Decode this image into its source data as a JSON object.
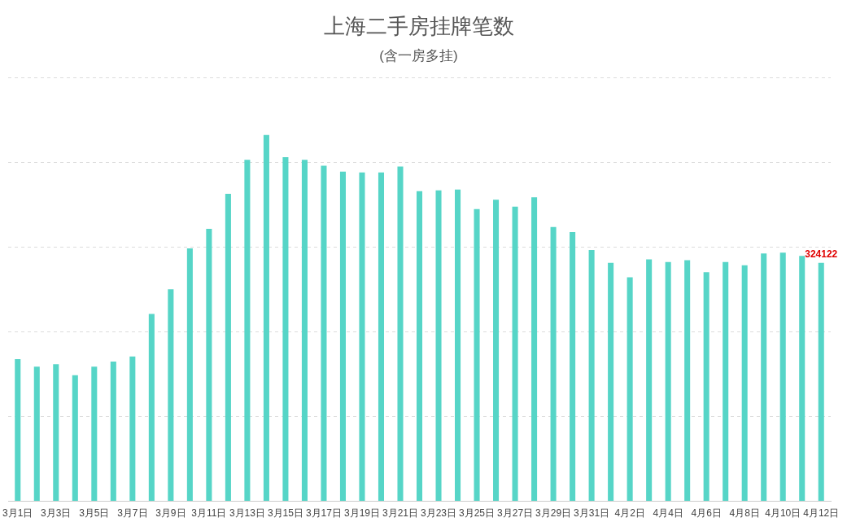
{
  "chart_data": {
    "type": "bar",
    "title": "上海二手房挂牌笔数",
    "subtitle": "(含一房多挂)",
    "categories": [
      "3月1日",
      null,
      "3月3日",
      null,
      "3月5日",
      null,
      "3月7日",
      null,
      "3月9日",
      null,
      "3月11日",
      null,
      "3月13日",
      null,
      "3月15日",
      null,
      "3月17日",
      null,
      "3月19日",
      null,
      "3月21日",
      null,
      "3月23日",
      null,
      "3月25日",
      null,
      "3月27日",
      null,
      "3月29日",
      null,
      "3月31日",
      null,
      "4月2日",
      null,
      "4月4日",
      null,
      "4月6日",
      null,
      "4月8日",
      null,
      "4月10日",
      null,
      "4月12日"
    ],
    "values": [
      193300,
      182900,
      186400,
      171300,
      182900,
      189800,
      196800,
      254700,
      288200,
      343800,
      370400,
      417900,
      464200,
      497800,
      467700,
      464200,
      456100,
      448000,
      446800,
      446800,
      454900,
      421400,
      422500,
      423700,
      397100,
      409800,
      400500,
      413300,
      372700,
      365800,
      341500,
      324100,
      304500,
      328800,
      325300,
      327600,
      311400,
      325300,
      320700,
      336900,
      338000,
      333400,
      324122
    ],
    "value_labels": [
      null,
      null,
      null,
      null,
      null,
      null,
      null,
      null,
      null,
      null,
      null,
      null,
      null,
      null,
      null,
      null,
      null,
      null,
      null,
      null,
      null,
      null,
      null,
      null,
      null,
      null,
      null,
      null,
      null,
      null,
      null,
      null,
      null,
      null,
      null,
      null,
      null,
      null,
      null,
      null,
      null,
      null,
      "324122"
    ],
    "color": "#56d5c7",
    "tick_labels": "x",
    "grid": "y",
    "legend": false
  }
}
